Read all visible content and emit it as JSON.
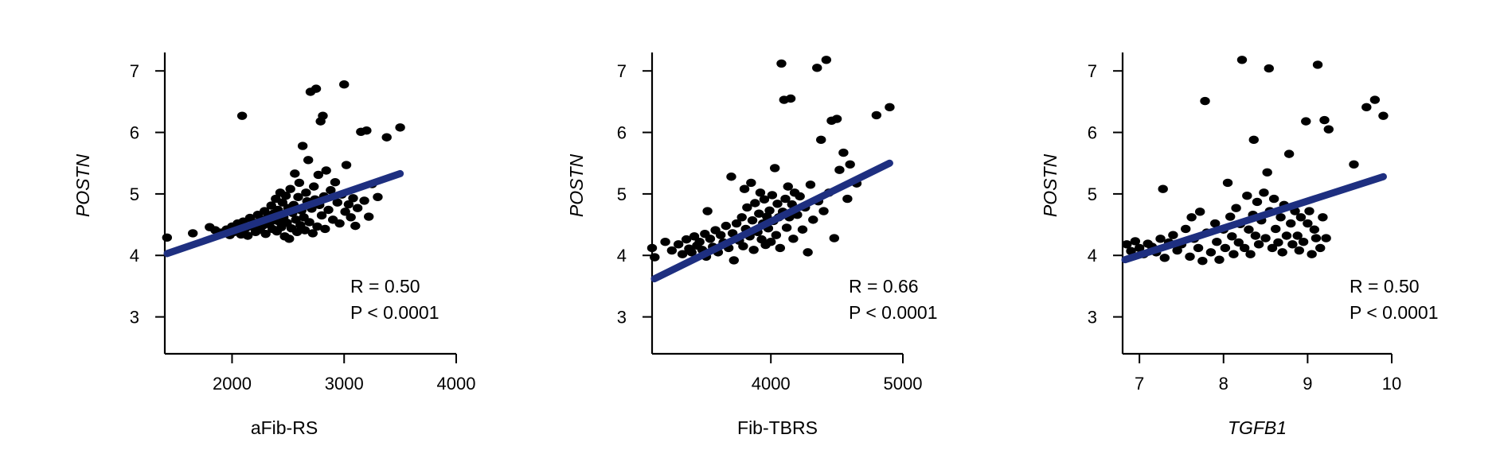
{
  "colors": {
    "points": "#000000",
    "fit_line": "#1e2f80"
  },
  "chart_data": [
    {
      "type": "scatter",
      "xlabel": "aFib-RS",
      "xlabel_italic": false,
      "ylabel": "POSTN",
      "xlim": [
        1400,
        4000
      ],
      "ylim": [
        2.4,
        7.3
      ],
      "xticks": [
        2000,
        3000,
        4000
      ],
      "yticks": [
        3,
        4,
        5,
        6,
        7
      ],
      "annotation": [
        "R = 0.50",
        "P < 0.0001"
      ],
      "fit": {
        "x": [
          1400,
          3500
        ],
        "y": [
          4.03,
          5.33
        ]
      },
      "points": [
        [
          1420,
          4.29
        ],
        [
          1650,
          4.36
        ],
        [
          1800,
          4.46
        ],
        [
          1850,
          4.41
        ],
        [
          1900,
          4.37
        ],
        [
          1950,
          4.42
        ],
        [
          1980,
          4.33
        ],
        [
          2000,
          4.47
        ],
        [
          2020,
          4.38
        ],
        [
          2050,
          4.52
        ],
        [
          2080,
          4.34
        ],
        [
          2090,
          6.27
        ],
        [
          2100,
          4.55
        ],
        [
          2120,
          4.44
        ],
        [
          2140,
          4.32
        ],
        [
          2160,
          4.61
        ],
        [
          2180,
          4.47
        ],
        [
          2200,
          4.53
        ],
        [
          2210,
          4.38
        ],
        [
          2230,
          4.66
        ],
        [
          2250,
          4.42
        ],
        [
          2260,
          4.58
        ],
        [
          2280,
          4.49
        ],
        [
          2290,
          4.72
        ],
        [
          2300,
          4.35
        ],
        [
          2320,
          4.63
        ],
        [
          2330,
          4.51
        ],
        [
          2350,
          4.81
        ],
        [
          2360,
          4.43
        ],
        [
          2370,
          4.68
        ],
        [
          2380,
          4.57
        ],
        [
          2390,
          4.92
        ],
        [
          2400,
          4.39
        ],
        [
          2410,
          4.74
        ],
        [
          2420,
          4.55
        ],
        [
          2430,
          5.02
        ],
        [
          2440,
          4.46
        ],
        [
          2450,
          4.86
        ],
        [
          2460,
          4.62
        ],
        [
          2470,
          4.31
        ],
        [
          2480,
          4.97
        ],
        [
          2490,
          4.53
        ],
        [
          2500,
          4.77
        ],
        [
          2510,
          4.27
        ],
        [
          2520,
          5.08
        ],
        [
          2530,
          4.44
        ],
        [
          2540,
          4.69
        ],
        [
          2550,
          4.82
        ],
        [
          2560,
          5.33
        ],
        [
          2570,
          4.58
        ],
        [
          2580,
          4.38
        ],
        [
          2590,
          4.95
        ],
        [
          2600,
          5.18
        ],
        [
          2610,
          4.49
        ],
        [
          2620,
          4.73
        ],
        [
          2630,
          5.78
        ],
        [
          2640,
          4.62
        ],
        [
          2650,
          4.41
        ],
        [
          2660,
          5.02
        ],
        [
          2670,
          4.88
        ],
        [
          2680,
          5.55
        ],
        [
          2690,
          4.54
        ],
        [
          2700,
          6.66
        ],
        [
          2710,
          4.76
        ],
        [
          2720,
          4.36
        ],
        [
          2730,
          5.12
        ],
        [
          2740,
          4.91
        ],
        [
          2750,
          6.71
        ],
        [
          2760,
          4.47
        ],
        [
          2770,
          5.31
        ],
        [
          2780,
          4.82
        ],
        [
          2790,
          6.18
        ],
        [
          2800,
          4.65
        ],
        [
          2810,
          6.27
        ],
        [
          2820,
          4.96
        ],
        [
          2830,
          4.43
        ],
        [
          2840,
          5.38
        ],
        [
          2860,
          4.74
        ],
        [
          2880,
          5.06
        ],
        [
          2900,
          4.58
        ],
        [
          2920,
          5.19
        ],
        [
          2940,
          4.86
        ],
        [
          2960,
          4.52
        ],
        [
          2980,
          4.99
        ],
        [
          3000,
          6.78
        ],
        [
          3010,
          4.71
        ],
        [
          3020,
          5.47
        ],
        [
          3040,
          4.83
        ],
        [
          3060,
          4.62
        ],
        [
          3080,
          4.93
        ],
        [
          3100,
          4.48
        ],
        [
          3120,
          4.77
        ],
        [
          3150,
          6.01
        ],
        [
          3180,
          4.89
        ],
        [
          3200,
          6.03
        ],
        [
          3220,
          4.63
        ],
        [
          3250,
          5.16
        ],
        [
          3300,
          4.95
        ],
        [
          3380,
          5.92
        ],
        [
          3500,
          6.08
        ]
      ]
    },
    {
      "type": "scatter",
      "xlabel": "Fib-TBRS",
      "xlabel_italic": false,
      "ylabel": "POSTN",
      "xlim": [
        3100,
        5000
      ],
      "ylim": [
        2.4,
        7.3
      ],
      "xticks": [
        4000,
        5000
      ],
      "yticks": [
        3,
        4,
        5,
        6,
        7
      ],
      "annotation": [
        "R = 0.66",
        "P < 0.0001"
      ],
      "fit": {
        "x": [
          3100,
          4900
        ],
        "y": [
          3.62,
          5.5
        ]
      },
      "points": [
        [
          3100,
          4.12
        ],
        [
          3120,
          3.97
        ],
        [
          3200,
          4.22
        ],
        [
          3250,
          4.08
        ],
        [
          3300,
          4.18
        ],
        [
          3330,
          4.02
        ],
        [
          3360,
          4.26
        ],
        [
          3380,
          4.11
        ],
        [
          3400,
          4.05
        ],
        [
          3420,
          4.31
        ],
        [
          3440,
          4.16
        ],
        [
          3460,
          4.22
        ],
        [
          3480,
          4.09
        ],
        [
          3500,
          4.35
        ],
        [
          3510,
          3.98
        ],
        [
          3520,
          4.72
        ],
        [
          3540,
          4.27
        ],
        [
          3560,
          4.14
        ],
        [
          3580,
          4.41
        ],
        [
          3600,
          4.05
        ],
        [
          3620,
          4.33
        ],
        [
          3640,
          4.21
        ],
        [
          3660,
          4.48
        ],
        [
          3680,
          4.12
        ],
        [
          3700,
          5.28
        ],
        [
          3710,
          4.36
        ],
        [
          3720,
          3.92
        ],
        [
          3740,
          4.52
        ],
        [
          3760,
          4.24
        ],
        [
          3780,
          4.62
        ],
        [
          3790,
          4.15
        ],
        [
          3800,
          5.08
        ],
        [
          3810,
          4.43
        ],
        [
          3820,
          4.78
        ],
        [
          3840,
          4.31
        ],
        [
          3850,
          5.18
        ],
        [
          3860,
          4.57
        ],
        [
          3870,
          4.09
        ],
        [
          3880,
          4.85
        ],
        [
          3900,
          4.38
        ],
        [
          3910,
          4.68
        ],
        [
          3920,
          5.02
        ],
        [
          3930,
          4.26
        ],
        [
          3940,
          4.52
        ],
        [
          3950,
          4.91
        ],
        [
          3960,
          4.17
        ],
        [
          3970,
          4.63
        ],
        [
          3980,
          4.44
        ],
        [
          3990,
          4.73
        ],
        [
          4000,
          4.22
        ],
        [
          4010,
          4.98
        ],
        [
          4020,
          4.56
        ],
        [
          4030,
          5.42
        ],
        [
          4040,
          4.33
        ],
        [
          4050,
          4.84
        ],
        [
          4060,
          4.62
        ],
        [
          4070,
          4.12
        ],
        [
          4080,
          7.12
        ],
        [
          4090,
          4.71
        ],
        [
          4100,
          6.53
        ],
        [
          4110,
          4.92
        ],
        [
          4120,
          4.45
        ],
        [
          4130,
          5.12
        ],
        [
          4140,
          4.62
        ],
        [
          4150,
          6.55
        ],
        [
          4160,
          4.83
        ],
        [
          4170,
          4.27
        ],
        [
          4180,
          5.02
        ],
        [
          4200,
          4.66
        ],
        [
          4220,
          4.96
        ],
        [
          4240,
          4.42
        ],
        [
          4260,
          4.78
        ],
        [
          4280,
          4.05
        ],
        [
          4300,
          5.15
        ],
        [
          4320,
          4.58
        ],
        [
          4350,
          7.05
        ],
        [
          4360,
          4.88
        ],
        [
          4380,
          5.88
        ],
        [
          4400,
          4.72
        ],
        [
          4420,
          7.18
        ],
        [
          4440,
          5.02
        ],
        [
          4460,
          6.19
        ],
        [
          4480,
          4.28
        ],
        [
          4500,
          6.22
        ],
        [
          4520,
          5.39
        ],
        [
          4550,
          5.67
        ],
        [
          4580,
          4.92
        ],
        [
          4600,
          5.48
        ],
        [
          4650,
          5.17
        ],
        [
          4800,
          6.28
        ],
        [
          4900,
          6.41
        ]
      ]
    },
    {
      "type": "scatter",
      "xlabel": "TGFB1",
      "xlabel_italic": true,
      "ylabel": "POSTN",
      "xlim": [
        6.8,
        10
      ],
      "ylim": [
        2.4,
        7.3
      ],
      "xticks": [
        7,
        8,
        9,
        10
      ],
      "yticks": [
        3,
        4,
        5,
        6,
        7
      ],
      "annotation": [
        "R = 0.50",
        "P < 0.0001"
      ],
      "fit": {
        "x": [
          6.8,
          9.9
        ],
        "y": [
          3.93,
          5.28
        ]
      },
      "points": [
        [
          6.85,
          4.18
        ],
        [
          6.9,
          4.07
        ],
        [
          6.95,
          4.23
        ],
        [
          7.0,
          4.12
        ],
        [
          7.05,
          4.02
        ],
        [
          7.1,
          4.19
        ],
        [
          7.15,
          4.14
        ],
        [
          7.2,
          4.05
        ],
        [
          7.25,
          4.27
        ],
        [
          7.28,
          5.08
        ],
        [
          7.3,
          3.96
        ],
        [
          7.35,
          4.21
        ],
        [
          7.4,
          4.33
        ],
        [
          7.45,
          4.08
        ],
        [
          7.5,
          4.18
        ],
        [
          7.55,
          4.43
        ],
        [
          7.6,
          3.98
        ],
        [
          7.62,
          4.62
        ],
        [
          7.65,
          4.27
        ],
        [
          7.7,
          4.12
        ],
        [
          7.72,
          4.71
        ],
        [
          7.75,
          3.91
        ],
        [
          7.78,
          6.51
        ],
        [
          7.8,
          4.37
        ],
        [
          7.85,
          4.05
        ],
        [
          7.9,
          4.52
        ],
        [
          7.92,
          4.22
        ],
        [
          7.95,
          3.93
        ],
        [
          8.0,
          4.42
        ],
        [
          8.02,
          4.12
        ],
        [
          8.05,
          5.18
        ],
        [
          8.08,
          4.63
        ],
        [
          8.1,
          4.31
        ],
        [
          8.12,
          4.02
        ],
        [
          8.15,
          4.77
        ],
        [
          8.18,
          4.21
        ],
        [
          8.2,
          4.51
        ],
        [
          8.22,
          7.18
        ],
        [
          8.25,
          4.12
        ],
        [
          8.28,
          4.97
        ],
        [
          8.3,
          4.42
        ],
        [
          8.32,
          4.02
        ],
        [
          8.35,
          4.66
        ],
        [
          8.36,
          5.88
        ],
        [
          8.38,
          4.32
        ],
        [
          8.4,
          4.87
        ],
        [
          8.42,
          4.18
        ],
        [
          8.45,
          4.57
        ],
        [
          8.48,
          5.02
        ],
        [
          8.5,
          4.28
        ],
        [
          8.52,
          5.35
        ],
        [
          8.54,
          7.04
        ],
        [
          8.55,
          4.72
        ],
        [
          8.58,
          4.12
        ],
        [
          8.6,
          4.92
        ],
        [
          8.62,
          4.43
        ],
        [
          8.65,
          4.21
        ],
        [
          8.68,
          4.62
        ],
        [
          8.7,
          4.05
        ],
        [
          8.72,
          4.82
        ],
        [
          8.75,
          4.32
        ],
        [
          8.78,
          5.65
        ],
        [
          8.8,
          4.52
        ],
        [
          8.82,
          4.18
        ],
        [
          8.85,
          4.72
        ],
        [
          8.88,
          4.32
        ],
        [
          8.9,
          4.08
        ],
        [
          8.92,
          4.62
        ],
        [
          8.95,
          4.22
        ],
        [
          8.98,
          6.18
        ],
        [
          9.0,
          4.52
        ],
        [
          9.02,
          4.72
        ],
        [
          9.05,
          4.02
        ],
        [
          9.08,
          4.42
        ],
        [
          9.1,
          4.28
        ],
        [
          9.12,
          7.1
        ],
        [
          9.15,
          4.12
        ],
        [
          9.18,
          4.62
        ],
        [
          9.2,
          6.2
        ],
        [
          9.22,
          4.28
        ],
        [
          9.25,
          6.05
        ],
        [
          9.55,
          5.48
        ],
        [
          9.7,
          6.41
        ],
        [
          9.8,
          6.53
        ],
        [
          9.9,
          6.27
        ]
      ]
    }
  ]
}
